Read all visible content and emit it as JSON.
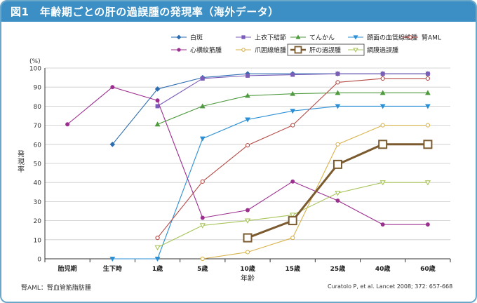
{
  "title": "図1　年齢期ごとの肝の過誤腫の発現率（海外データ）",
  "footnote": "腎AML：腎血管筋脂肪腫",
  "source": "Curatolo P, et al. Lancet 2008; 372: 657-668",
  "chart_data": {
    "type": "line",
    "ylabel": "発現率",
    "yunit": "(%)",
    "xlabel": "年齢",
    "ylim": [
      0,
      100
    ],
    "yticks": [
      0,
      10,
      20,
      30,
      40,
      50,
      60,
      70,
      80,
      90,
      100
    ],
    "categories": [
      "胎児期",
      "生下時",
      "1歳",
      "5歳",
      "10歳",
      "15歳",
      "25歳",
      "40歳",
      "60歳"
    ],
    "legend_position": "top-right",
    "series": [
      {
        "name": "白斑",
        "color": "#2b6bb0",
        "marker": "diamond",
        "values": [
          null,
          60,
          89,
          95,
          97,
          97,
          97,
          97,
          97
        ]
      },
      {
        "name": "上衣下結節",
        "color": "#7b5cb8",
        "marker": "square",
        "values": [
          null,
          null,
          80,
          94.5,
          96,
          96.5,
          97,
          97,
          97
        ]
      },
      {
        "name": "てんかん",
        "color": "#4e9a3e",
        "marker": "triangle-up",
        "values": [
          null,
          null,
          70.5,
          80,
          85.5,
          86.5,
          87,
          87,
          87
        ]
      },
      {
        "name": "顔面の血管線維腫",
        "color": "#2a8fd4",
        "marker": "triangle-down",
        "values": [
          null,
          0,
          0,
          63,
          73,
          77.5,
          80,
          80,
          80
        ]
      },
      {
        "name": "腎AML",
        "color": "#b44a45",
        "marker": "circle-open",
        "values": [
          null,
          null,
          11,
          40.5,
          59.5,
          70,
          92.5,
          94.5,
          94.5
        ]
      },
      {
        "name": "心横紋筋腫",
        "color": "#9b2e8f",
        "marker": "circle",
        "values": [
          70.5,
          90,
          83,
          21.5,
          25.5,
          40.5,
          30.5,
          18,
          18
        ]
      },
      {
        "name": "爪囲線維腫",
        "color": "#d8b24a",
        "marker": "circle-open",
        "values": [
          null,
          null,
          null,
          0,
          3.5,
          11,
          60,
          70,
          70
        ]
      },
      {
        "name": "肝の過誤腫",
        "color": "#7a5a2e",
        "marker": "square-open",
        "emphasis": true,
        "values": [
          null,
          null,
          null,
          null,
          11,
          20,
          49.5,
          60,
          60
        ]
      },
      {
        "name": "網膜過誤腫",
        "color": "#a8c45a",
        "marker": "triangle-down-open",
        "values": [
          null,
          null,
          6,
          17.5,
          20,
          23,
          34.5,
          40,
          40
        ]
      }
    ]
  }
}
